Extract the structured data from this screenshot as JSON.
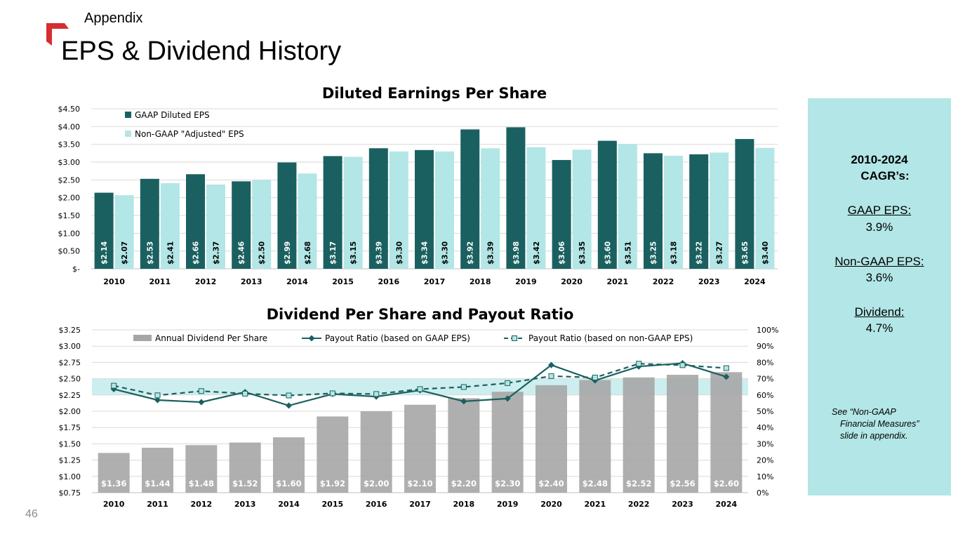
{
  "header": {
    "section": "Appendix",
    "title": "EPS & Dividend History",
    "page_number": "46"
  },
  "sidebar": {
    "heading_line1": "2010-2024",
    "heading_line2": "CAGR’s:",
    "items": [
      {
        "label": "GAAP EPS:",
        "value": "3.9%"
      },
      {
        "label": "Non-GAAP EPS:",
        "value": "3.6%"
      },
      {
        "label": "Dividend:",
        "value": "4.7%"
      }
    ],
    "note_line1": "See “Non-GAAP",
    "note_line2": "Financial Measures”",
    "note_line3": "slide in appendix."
  },
  "colors": {
    "gaap": "#1b6060",
    "nongaap": "#b3e6e6",
    "dividend_bar": "#a6a6a6",
    "ratio_line": "#1b6060",
    "ratio_band": "#cdeeee",
    "accent": "#d62e2e"
  },
  "chart_data": [
    {
      "type": "bar",
      "title": "Diluted Earnings Per Share",
      "categories": [
        "2010",
        "2011",
        "2012",
        "2013",
        "2014",
        "2015",
        "2016",
        "2017",
        "2018",
        "2019",
        "2020",
        "2021",
        "2022",
        "2023",
        "2024"
      ],
      "series": [
        {
          "name": "GAAP Diluted EPS",
          "values": [
            2.14,
            2.53,
            2.66,
            2.46,
            2.99,
            3.17,
            3.39,
            3.34,
            3.92,
            3.98,
            3.06,
            3.6,
            3.25,
            3.22,
            3.65
          ],
          "labels": [
            "$2.14",
            "$2.53",
            "$2.66",
            "$2.46",
            "$2.99",
            "$3.17",
            "$3.39",
            "$3.34",
            "$3.92",
            "$3.98",
            "$3.06",
            "$3.60",
            "$3.25",
            "$3.22",
            "$3.65"
          ]
        },
        {
          "name": "Non-GAAP \"Adjusted\" EPS",
          "values": [
            2.07,
            2.41,
            2.37,
            2.5,
            2.68,
            3.15,
            3.3,
            3.3,
            3.39,
            3.42,
            3.35,
            3.51,
            3.18,
            3.27,
            3.4
          ],
          "labels": [
            "$2.07",
            "$2.41",
            "$2.37",
            "$2.50",
            "$2.68",
            "$3.15",
            "$3.30",
            "$3.30",
            "$3.39",
            "$3.42",
            "$3.35",
            "$3.51",
            "$3.18",
            "$3.27",
            "$3.40"
          ]
        }
      ],
      "ylim": [
        0,
        4.5
      ],
      "yticks": [
        0,
        0.5,
        1,
        1.5,
        2,
        2.5,
        3,
        3.5,
        4,
        4.5
      ],
      "ytick_labels": [
        "$-",
        "$0.50",
        "$1.00",
        "$1.50",
        "$2.00",
        "$2.50",
        "$3.00",
        "$3.50",
        "$4.00",
        "$4.50"
      ],
      "grid": true,
      "legend": "top-left"
    },
    {
      "type": "bar+line",
      "title": "Dividend Per Share and Payout Ratio",
      "categories": [
        "2010",
        "2011",
        "2012",
        "2013",
        "2014",
        "2015",
        "2016",
        "2017",
        "2018",
        "2019",
        "2020",
        "2021",
        "2022",
        "2023",
        "2024"
      ],
      "bars": {
        "name": "Annual Dividend Per Share",
        "values": [
          1.36,
          1.44,
          1.48,
          1.52,
          1.6,
          1.92,
          2.0,
          2.1,
          2.2,
          2.3,
          2.4,
          2.48,
          2.52,
          2.56,
          2.6
        ],
        "labels": [
          "$1.36",
          "$1.44",
          "$1.48",
          "$1.52",
          "$1.60",
          "$1.92",
          "$2.00",
          "$2.10",
          "$2.20",
          "$2.30",
          "$2.40",
          "$2.48",
          "$2.52",
          "$2.56",
          "$2.60"
        ]
      },
      "lines": [
        {
          "name": "Payout Ratio (based on GAAP EPS)",
          "style": "solid-diamond",
          "values": [
            63.6,
            56.9,
            55.6,
            61.8,
            53.5,
            60.6,
            59.0,
            62.9,
            56.1,
            57.8,
            78.4,
            68.9,
            77.5,
            79.5,
            71.2
          ]
        },
        {
          "name": "Payout Ratio (based on non-GAAP EPS)",
          "style": "dashed-square",
          "values": [
            65.7,
            59.8,
            62.4,
            60.8,
            59.7,
            61.0,
            60.6,
            63.6,
            64.9,
            67.3,
            71.6,
            70.7,
            79.2,
            78.3,
            76.5
          ]
        }
      ],
      "ylim": [
        0.75,
        3.25
      ],
      "yticks": [
        0.75,
        1.0,
        1.25,
        1.5,
        1.75,
        2.0,
        2.25,
        2.5,
        2.75,
        3.0,
        3.25
      ],
      "ytick_labels": [
        "$0.75",
        "$1.00",
        "$1.25",
        "$1.50",
        "$1.75",
        "$2.00",
        "$2.25",
        "$2.50",
        "$2.75",
        "$3.00",
        "$3.25"
      ],
      "y2lim": [
        0,
        100
      ],
      "y2ticks": [
        0,
        10,
        20,
        30,
        40,
        50,
        60,
        70,
        80,
        90,
        100
      ],
      "y2tick_labels": [
        "0%",
        "10%",
        "20%",
        "30%",
        "40%",
        "50%",
        "60%",
        "70%",
        "80%",
        "90%",
        "100%"
      ],
      "target_band": [
        60,
        70
      ],
      "legend": "top"
    }
  ]
}
